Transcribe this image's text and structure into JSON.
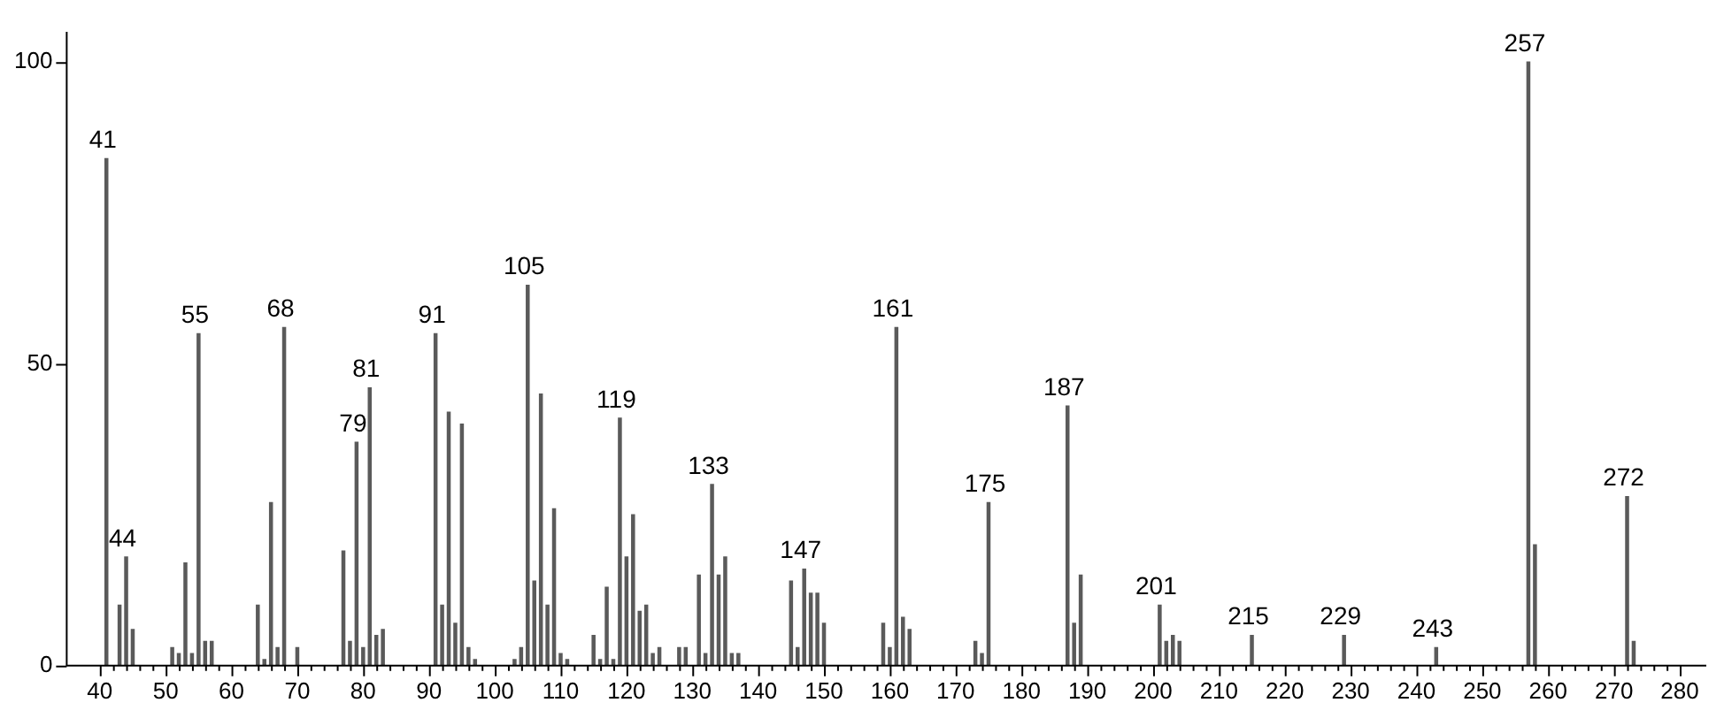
{
  "chart_data": {
    "type": "bar",
    "color": "#5a5a5a",
    "x": [
      41,
      43,
      44,
      45,
      51,
      52,
      53,
      54,
      55,
      56,
      57,
      64,
      65,
      66,
      67,
      68,
      70,
      77,
      78,
      79,
      80,
      81,
      82,
      83,
      91,
      92,
      93,
      94,
      95,
      96,
      97,
      103,
      104,
      105,
      106,
      107,
      108,
      109,
      110,
      111,
      115,
      116,
      117,
      118,
      119,
      120,
      121,
      122,
      123,
      124,
      125,
      128,
      129,
      131,
      132,
      133,
      134,
      135,
      136,
      137,
      145,
      146,
      147,
      148,
      149,
      150,
      159,
      160,
      161,
      162,
      163,
      173,
      174,
      175,
      187,
      188,
      189,
      201,
      202,
      203,
      204,
      215,
      229,
      243,
      257,
      258,
      272,
      273
    ],
    "values": [
      84,
      10,
      18,
      6,
      3,
      2,
      17,
      2,
      55,
      4,
      4,
      10,
      1,
      27,
      3,
      56,
      3,
      19,
      4,
      37,
      3,
      46,
      5,
      6,
      55,
      10,
      42,
      7,
      40,
      3,
      1,
      1,
      3,
      63,
      14,
      45,
      10,
      26,
      2,
      1,
      5,
      1,
      13,
      1,
      41,
      18,
      25,
      9,
      10,
      2,
      3,
      3,
      3,
      15,
      2,
      30,
      15,
      18,
      2,
      2,
      14,
      3,
      16,
      12,
      12,
      7,
      7,
      3,
      56,
      8,
      6,
      4,
      2,
      27,
      43,
      7,
      15,
      10,
      4,
      5,
      4,
      5,
      5,
      3,
      100,
      20,
      28,
      4
    ],
    "annotations": [
      {
        "text": "41",
        "x": 41,
        "y": 84
      },
      {
        "text": "44",
        "x": 44,
        "y": 18
      },
      {
        "text": "55",
        "x": 55,
        "y": 55
      },
      {
        "text": "68",
        "x": 68,
        "y": 56
      },
      {
        "text": "79",
        "x": 79,
        "y": 37
      },
      {
        "text": "81",
        "x": 81,
        "y": 46
      },
      {
        "text": "91",
        "x": 91,
        "y": 55
      },
      {
        "text": "105",
        "x": 105,
        "y": 63
      },
      {
        "text": "119",
        "x": 119,
        "y": 41
      },
      {
        "text": "133",
        "x": 133,
        "y": 30
      },
      {
        "text": "147",
        "x": 147,
        "y": 16
      },
      {
        "text": "161",
        "x": 161,
        "y": 56
      },
      {
        "text": "175",
        "x": 175,
        "y": 27
      },
      {
        "text": "187",
        "x": 187,
        "y": 43
      },
      {
        "text": "201",
        "x": 201,
        "y": 10
      },
      {
        "text": "215",
        "x": 215,
        "y": 5
      },
      {
        "text": "229",
        "x": 229,
        "y": 5
      },
      {
        "text": "243",
        "x": 243,
        "y": 3
      },
      {
        "text": "257",
        "x": 257,
        "y": 100
      },
      {
        "text": "272",
        "x": 272,
        "y": 28
      }
    ],
    "xlim": [
      36,
      283
    ],
    "xticks": [
      40,
      {
        "value": 42,
        "label": null
      },
      {
        "value": 44,
        "label": null
      },
      {
        "value": 46,
        "label": null
      },
      {
        "value": 48,
        "label": null
      },
      50,
      {
        "value": 52,
        "label": null
      },
      {
        "value": 54,
        "label": null
      },
      {
        "value": 56,
        "label": null
      },
      {
        "value": 58,
        "label": null
      },
      60,
      {
        "value": 62,
        "label": null
      },
      {
        "value": 64,
        "label": null
      },
      {
        "value": 66,
        "label": null
      },
      {
        "value": 68,
        "label": null
      },
      70,
      {
        "value": 72,
        "label": null
      },
      {
        "value": 74,
        "label": null
      },
      {
        "value": 76,
        "label": null
      },
      {
        "value": 78,
        "label": null
      },
      80,
      {
        "value": 82,
        "label": null
      },
      {
        "value": 84,
        "label": null
      },
      {
        "value": 86,
        "label": null
      },
      {
        "value": 88,
        "label": null
      },
      90,
      {
        "value": 92,
        "label": null
      },
      {
        "value": 94,
        "label": null
      },
      {
        "value": 96,
        "label": null
      },
      {
        "value": 98,
        "label": null
      },
      100,
      {
        "value": 102,
        "label": null
      },
      {
        "value": 104,
        "label": null
      },
      {
        "value": 106,
        "label": null
      },
      {
        "value": 108,
        "label": null
      },
      110,
      {
        "value": 112,
        "label": null
      },
      {
        "value": 114,
        "label": null
      },
      {
        "value": 116,
        "label": null
      },
      {
        "value": 118,
        "label": null
      },
      120,
      {
        "value": 122,
        "label": null
      },
      {
        "value": 124,
        "label": null
      },
      {
        "value": 126,
        "label": null
      },
      {
        "value": 128,
        "label": null
      },
      130,
      {
        "value": 132,
        "label": null
      },
      {
        "value": 134,
        "label": null
      },
      {
        "value": 136,
        "label": null
      },
      {
        "value": 138,
        "label": null
      },
      140,
      {
        "value": 142,
        "label": null
      },
      {
        "value": 144,
        "label": null
      },
      {
        "value": 146,
        "label": null
      },
      {
        "value": 148,
        "label": null
      },
      150,
      {
        "value": 152,
        "label": null
      },
      {
        "value": 154,
        "label": null
      },
      {
        "value": 156,
        "label": null
      },
      {
        "value": 158,
        "label": null
      },
      160,
      {
        "value": 162,
        "label": null
      },
      {
        "value": 164,
        "label": null
      },
      {
        "value": 166,
        "label": null
      },
      {
        "value": 168,
        "label": null
      },
      170,
      {
        "value": 172,
        "label": null
      },
      {
        "value": 174,
        "label": null
      },
      {
        "value": 176,
        "label": null
      },
      {
        "value": 178,
        "label": null
      },
      180,
      {
        "value": 182,
        "label": null
      },
      {
        "value": 184,
        "label": null
      },
      {
        "value": 186,
        "label": null
      },
      {
        "value": 188,
        "label": null
      },
      190,
      {
        "value": 192,
        "label": null
      },
      {
        "value": 194,
        "label": null
      },
      {
        "value": 196,
        "label": null
      },
      {
        "value": 198,
        "label": null
      },
      200,
      {
        "value": 202,
        "label": null
      },
      {
        "value": 204,
        "label": null
      },
      {
        "value": 206,
        "label": null
      },
      {
        "value": 208,
        "label": null
      },
      210,
      {
        "value": 212,
        "label": null
      },
      {
        "value": 214,
        "label": null
      },
      {
        "value": 216,
        "label": null
      },
      {
        "value": 218,
        "label": null
      },
      220,
      {
        "value": 222,
        "label": null
      },
      {
        "value": 224,
        "label": null
      },
      {
        "value": 226,
        "label": null
      },
      {
        "value": 228,
        "label": null
      },
      230,
      {
        "value": 232,
        "label": null
      },
      {
        "value": 234,
        "label": null
      },
      {
        "value": 236,
        "label": null
      },
      {
        "value": 238,
        "label": null
      },
      240,
      {
        "value": 242,
        "label": null
      },
      {
        "value": 244,
        "label": null
      },
      {
        "value": 246,
        "label": null
      },
      {
        "value": 248,
        "label": null
      },
      250,
      {
        "value": 252,
        "label": null
      },
      {
        "value": 254,
        "label": null
      },
      {
        "value": 256,
        "label": null
      },
      {
        "value": 258,
        "label": null
      },
      260,
      {
        "value": 262,
        "label": null
      },
      {
        "value": 264,
        "label": null
      },
      {
        "value": 266,
        "label": null
      },
      {
        "value": 268,
        "label": null
      },
      270,
      {
        "value": 272,
        "label": null
      },
      {
        "value": 274,
        "label": null
      },
      {
        "value": 276,
        "label": null
      },
      {
        "value": 278,
        "label": null
      },
      280
    ],
    "ylim": [
      0,
      105
    ],
    "yticks": [
      0,
      50,
      100
    ],
    "grid": false,
    "legend": false
  }
}
